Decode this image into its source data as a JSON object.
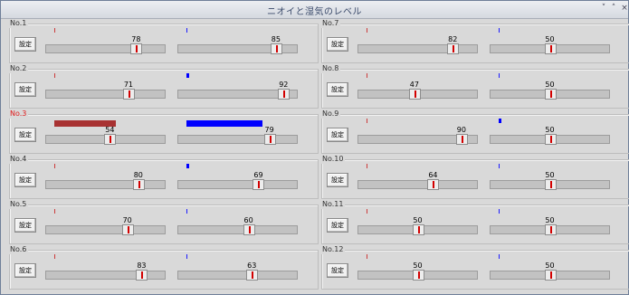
{
  "window": {
    "title": "ニオイと湿気のレベル",
    "controls": {
      "minimize": "˅",
      "maximize": "˄",
      "close": "×"
    }
  },
  "colors": {
    "odor_bar": "#a83232",
    "humidity_bar": "#0000ff",
    "odor_marker": "#cc3b3b",
    "humidity_marker": "#1a1aff",
    "active_label": "#e01a1a"
  },
  "set_label": "設定",
  "slider_range": [
    0,
    100
  ],
  "sensors": [
    {
      "label": "No.1",
      "odor": 78,
      "humidity": 85,
      "odor_level": 0.0,
      "humidity_level": 0.0
    },
    {
      "label": "No.2",
      "odor": 71,
      "humidity": 92,
      "odor_level": 0.0,
      "humidity_level": 0.03
    },
    {
      "label": "No.3",
      "odor": 54,
      "humidity": 79,
      "odor_level": 0.51,
      "humidity_level": 0.63,
      "active": true
    },
    {
      "label": "No.4",
      "odor": 80,
      "humidity": 69,
      "odor_level": 0.0,
      "humidity_level": 0.03
    },
    {
      "label": "No.5",
      "odor": 70,
      "humidity": 60,
      "odor_level": 0.0,
      "humidity_level": 0.0
    },
    {
      "label": "No.6",
      "odor": 83,
      "humidity": 63,
      "odor_level": 0.0,
      "humidity_level": 0.0
    },
    {
      "label": "No.7",
      "odor": 82,
      "humidity": 50,
      "odor_level": 0.0,
      "humidity_level": 0.0
    },
    {
      "label": "No.8",
      "odor": 47,
      "humidity": 50,
      "odor_level": 0.0,
      "humidity_level": 0.0
    },
    {
      "label": "No.9",
      "odor": 90,
      "humidity": 50,
      "odor_level": 0.0,
      "humidity_level": 0.03
    },
    {
      "label": "No.10",
      "odor": 64,
      "humidity": 50,
      "odor_level": 0.0,
      "humidity_level": 0.0
    },
    {
      "label": "No.11",
      "odor": 50,
      "humidity": 50,
      "odor_level": 0.0,
      "humidity_level": 0.0
    },
    {
      "label": "No.12",
      "odor": 50,
      "humidity": 50,
      "odor_level": 0.0,
      "humidity_level": 0.0
    }
  ]
}
